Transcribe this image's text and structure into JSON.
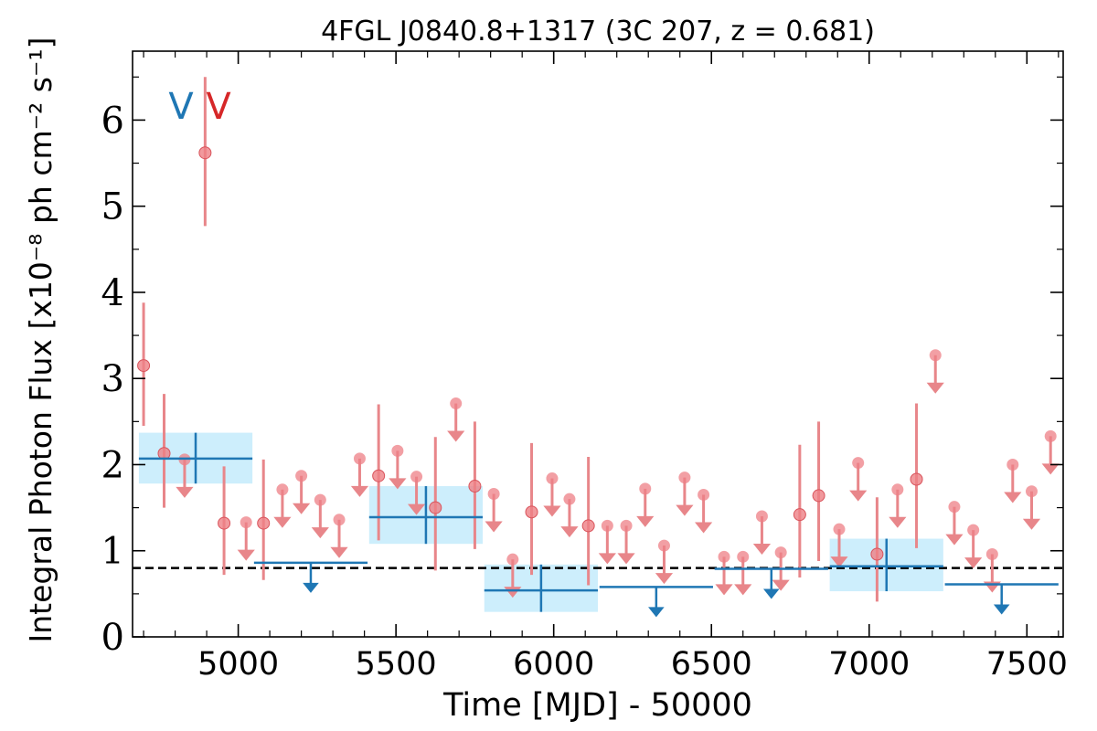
{
  "chart_data": {
    "type": "scatter",
    "title": "4FGL J0840.8+1317 (3C 207, z = 0.681)",
    "xlabel": "Time [MJD] - 50000",
    "ylabel": "Integral Photon Flux [x10⁻⁸ ph cm⁻² s⁻¹]",
    "xlim": [
      4665,
      7615
    ],
    "ylim": [
      0,
      6.8
    ],
    "x_ticks": [
      5000,
      5500,
      6000,
      6500,
      7000,
      7500
    ],
    "y_ticks": [
      0,
      1,
      2,
      3,
      4,
      5,
      6
    ],
    "legend": [
      {
        "label": "V",
        "color": "#1f77b4"
      },
      {
        "label": "V",
        "color": "#d62728"
      }
    ],
    "reference_line": {
      "y": 0.8,
      "style": "dashed",
      "color": "#000000"
    },
    "series": [
      {
        "name": "",
        "color": "#1f77b4",
        "band_color": "#cdeefc",
        "detections": [
          {
            "x": 4865,
            "x_lo": 4685,
            "x_hi": 5045,
            "y": 2.07,
            "y_lo": 1.78,
            "y_hi": 2.37
          },
          {
            "x": 5595,
            "x_lo": 5415,
            "x_hi": 5775,
            "y": 1.39,
            "y_lo": 1.08,
            "y_hi": 1.75
          },
          {
            "x": 5960,
            "x_lo": 5780,
            "x_hi": 6140,
            "y": 0.54,
            "y_lo": 0.29,
            "y_hi": 0.84
          },
          {
            "x": 7055,
            "x_lo": 6875,
            "x_hi": 7235,
            "y": 0.82,
            "y_lo": 0.53,
            "y_hi": 1.14
          }
        ],
        "upper_limits": [
          {
            "x": 5230,
            "x_lo": 5050,
            "x_hi": 5410,
            "y": 0.86
          },
          {
            "x": 6325,
            "x_lo": 6145,
            "x_hi": 6505,
            "y": 0.58
          },
          {
            "x": 6690,
            "x_lo": 6510,
            "x_hi": 6870,
            "y": 0.79
          },
          {
            "x": 7420,
            "x_lo": 7240,
            "x_hi": 7600,
            "y": 0.61
          }
        ]
      },
      {
        "name": "",
        "color": "#e8868a",
        "marker_color": "#ee7f85",
        "detections": [
          {
            "x": 4700,
            "y": 3.15,
            "y_lo": 2.45,
            "y_hi": 3.88
          },
          {
            "x": 4765,
            "y": 2.13,
            "y_lo": 1.5,
            "y_hi": 2.82
          },
          {
            "x": 4895,
            "y": 5.62,
            "y_lo": 4.77,
            "y_hi": 6.5
          },
          {
            "x": 4955,
            "y": 1.32,
            "y_lo": 0.72,
            "y_hi": 1.98
          },
          {
            "x": 5080,
            "y": 1.32,
            "y_lo": 0.66,
            "y_hi": 2.06
          },
          {
            "x": 5445,
            "y": 1.87,
            "y_lo": 1.12,
            "y_hi": 2.7
          },
          {
            "x": 5625,
            "y": 1.5,
            "y_lo": 0.77,
            "y_hi": 2.32
          },
          {
            "x": 5750,
            "y": 1.75,
            "y_lo": 1.02,
            "y_hi": 2.5
          },
          {
            "x": 5930,
            "y": 1.45,
            "y_lo": 0.72,
            "y_hi": 2.25
          },
          {
            "x": 6110,
            "y": 1.29,
            "y_lo": 0.6,
            "y_hi": 2.09
          },
          {
            "x": 6780,
            "y": 1.42,
            "y_lo": 0.69,
            "y_hi": 2.23
          },
          {
            "x": 6840,
            "y": 1.64,
            "y_lo": 0.88,
            "y_hi": 2.5
          },
          {
            "x": 7025,
            "y": 0.96,
            "y_lo": 0.41,
            "y_hi": 1.62
          },
          {
            "x": 7150,
            "y": 1.83,
            "y_lo": 1.03,
            "y_hi": 2.71
          }
        ],
        "upper_limits": [
          {
            "x": 4830,
            "y": 2.06
          },
          {
            "x": 5025,
            "y": 1.33
          },
          {
            "x": 5140,
            "y": 1.71
          },
          {
            "x": 5200,
            "y": 1.87
          },
          {
            "x": 5260,
            "y": 1.59
          },
          {
            "x": 5320,
            "y": 1.36
          },
          {
            "x": 5385,
            "y": 2.07
          },
          {
            "x": 5505,
            "y": 2.16
          },
          {
            "x": 5565,
            "y": 1.86
          },
          {
            "x": 5690,
            "y": 2.71
          },
          {
            "x": 5810,
            "y": 1.66
          },
          {
            "x": 5870,
            "y": 0.9
          },
          {
            "x": 5995,
            "y": 1.84
          },
          {
            "x": 6050,
            "y": 1.6
          },
          {
            "x": 6170,
            "y": 1.29
          },
          {
            "x": 6230,
            "y": 1.29
          },
          {
            "x": 6290,
            "y": 1.72
          },
          {
            "x": 6350,
            "y": 1.06
          },
          {
            "x": 6415,
            "y": 1.85
          },
          {
            "x": 6475,
            "y": 1.65
          },
          {
            "x": 6540,
            "y": 0.93
          },
          {
            "x": 6600,
            "y": 0.93
          },
          {
            "x": 6660,
            "y": 1.4
          },
          {
            "x": 6720,
            "y": 0.98
          },
          {
            "x": 6905,
            "y": 1.25
          },
          {
            "x": 6965,
            "y": 2.02
          },
          {
            "x": 7090,
            "y": 1.71
          },
          {
            "x": 7210,
            "y": 3.27
          },
          {
            "x": 7270,
            "y": 1.51
          },
          {
            "x": 7330,
            "y": 1.24
          },
          {
            "x": 7390,
            "y": 0.96
          },
          {
            "x": 7455,
            "y": 2.0
          },
          {
            "x": 7515,
            "y": 1.69
          },
          {
            "x": 7575,
            "y": 2.33
          }
        ]
      }
    ]
  }
}
